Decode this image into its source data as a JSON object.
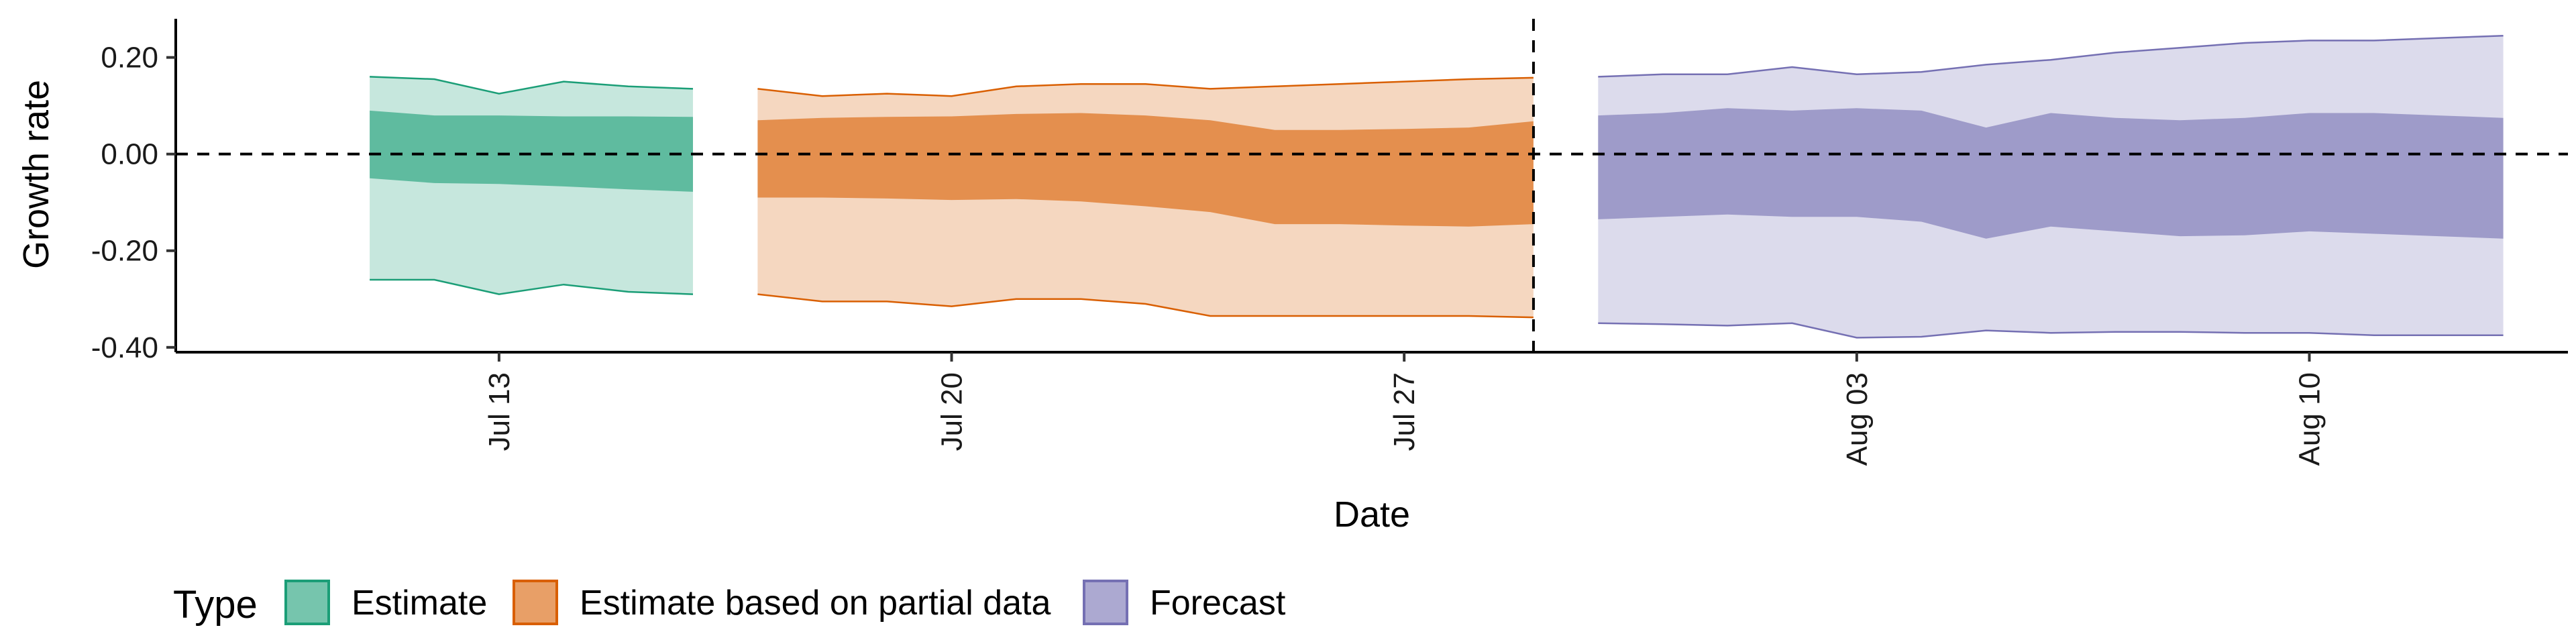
{
  "chart_data": {
    "type": "area",
    "xlabel": "Date",
    "ylabel": "Growth rate",
    "x_range": [
      "2020-07-08",
      "2020-08-14"
    ],
    "ylim": [
      -0.41,
      0.28
    ],
    "y_ticks": [
      0.2,
      0.0,
      -0.2,
      -0.4
    ],
    "y_tick_labels": [
      "0.20",
      "0.00",
      "-0.20",
      "-0.40"
    ],
    "x_ticks": [
      "2020-07-13",
      "2020-07-20",
      "2020-07-27",
      "2020-08-03",
      "2020-08-10"
    ],
    "x_tick_labels": [
      "Jul 13",
      "Jul 20",
      "Jul 27",
      "Aug 03",
      "Aug 10"
    ],
    "reference_lines": {
      "horizontal_y": 0.0,
      "vertical_date": "2020-07-29"
    },
    "grid": false,
    "legend": {
      "title": "Type",
      "placement": "bottom-left",
      "entries": [
        "Estimate",
        "Estimate based on partial data",
        "Forecast"
      ]
    },
    "series": [
      {
        "name": "Estimate",
        "fill_color": "#1b9e77",
        "x": [
          "2020-07-11",
          "2020-07-12",
          "2020-07-13",
          "2020-07-14",
          "2020-07-15",
          "2020-07-16"
        ],
        "lower_90": [
          -0.26,
          -0.26,
          -0.29,
          -0.27,
          -0.285,
          -0.29
        ],
        "lower_50": [
          -0.05,
          -0.06,
          -0.062,
          -0.067,
          -0.073,
          -0.078
        ],
        "upper_50": [
          0.09,
          0.08,
          0.08,
          0.078,
          0.078,
          0.077
        ],
        "upper_90": [
          0.16,
          0.155,
          0.125,
          0.15,
          0.14,
          0.135
        ]
      },
      {
        "name": "Estimate based on partial data",
        "fill_color": "#d95f02",
        "x": [
          "2020-07-17",
          "2020-07-18",
          "2020-07-19",
          "2020-07-20",
          "2020-07-21",
          "2020-07-22",
          "2020-07-23",
          "2020-07-24",
          "2020-07-25",
          "2020-07-26",
          "2020-07-27",
          "2020-07-28",
          "2020-07-29"
        ],
        "lower_90": [
          -0.29,
          -0.305,
          -0.305,
          -0.315,
          -0.3,
          -0.3,
          -0.31,
          -0.335,
          -0.335,
          -0.335,
          -0.335,
          -0.335,
          -0.338
        ],
        "lower_50": [
          -0.09,
          -0.09,
          -0.092,
          -0.095,
          -0.093,
          -0.098,
          -0.108,
          -0.12,
          -0.145,
          -0.145,
          -0.148,
          -0.15,
          -0.145
        ],
        "upper_50": [
          0.07,
          0.075,
          0.077,
          0.078,
          0.083,
          0.085,
          0.08,
          0.07,
          0.05,
          0.05,
          0.052,
          0.055,
          0.068
        ],
        "upper_90": [
          0.135,
          0.12,
          0.125,
          0.12,
          0.14,
          0.145,
          0.145,
          0.135,
          0.14,
          0.145,
          0.15,
          0.155,
          0.158
        ]
      },
      {
        "name": "Forecast",
        "fill_color": "#7570b3",
        "x": [
          "2020-07-30",
          "2020-07-31",
          "2020-08-01",
          "2020-08-02",
          "2020-08-03",
          "2020-08-04",
          "2020-08-05",
          "2020-08-06",
          "2020-08-07",
          "2020-08-08",
          "2020-08-09",
          "2020-08-10",
          "2020-08-11",
          "2020-08-12",
          "2020-08-13"
        ],
        "lower_90": [
          -0.35,
          -0.352,
          -0.355,
          -0.35,
          -0.38,
          -0.378,
          -0.365,
          -0.37,
          -0.368,
          -0.368,
          -0.37,
          -0.37,
          -0.375,
          -0.375,
          -0.375
        ],
        "lower_50": [
          -0.135,
          -0.13,
          -0.125,
          -0.13,
          -0.13,
          -0.14,
          -0.175,
          -0.15,
          -0.16,
          -0.17,
          -0.168,
          -0.16,
          -0.165,
          -0.17,
          -0.175
        ],
        "upper_50": [
          0.08,
          0.085,
          0.095,
          0.09,
          0.095,
          0.09,
          0.055,
          0.085,
          0.075,
          0.07,
          0.075,
          0.085,
          0.085,
          0.08,
          0.075
        ],
        "upper_90": [
          0.16,
          0.165,
          0.165,
          0.18,
          0.165,
          0.17,
          0.185,
          0.195,
          0.21,
          0.22,
          0.23,
          0.235,
          0.235,
          0.24,
          0.245
        ]
      }
    ]
  }
}
